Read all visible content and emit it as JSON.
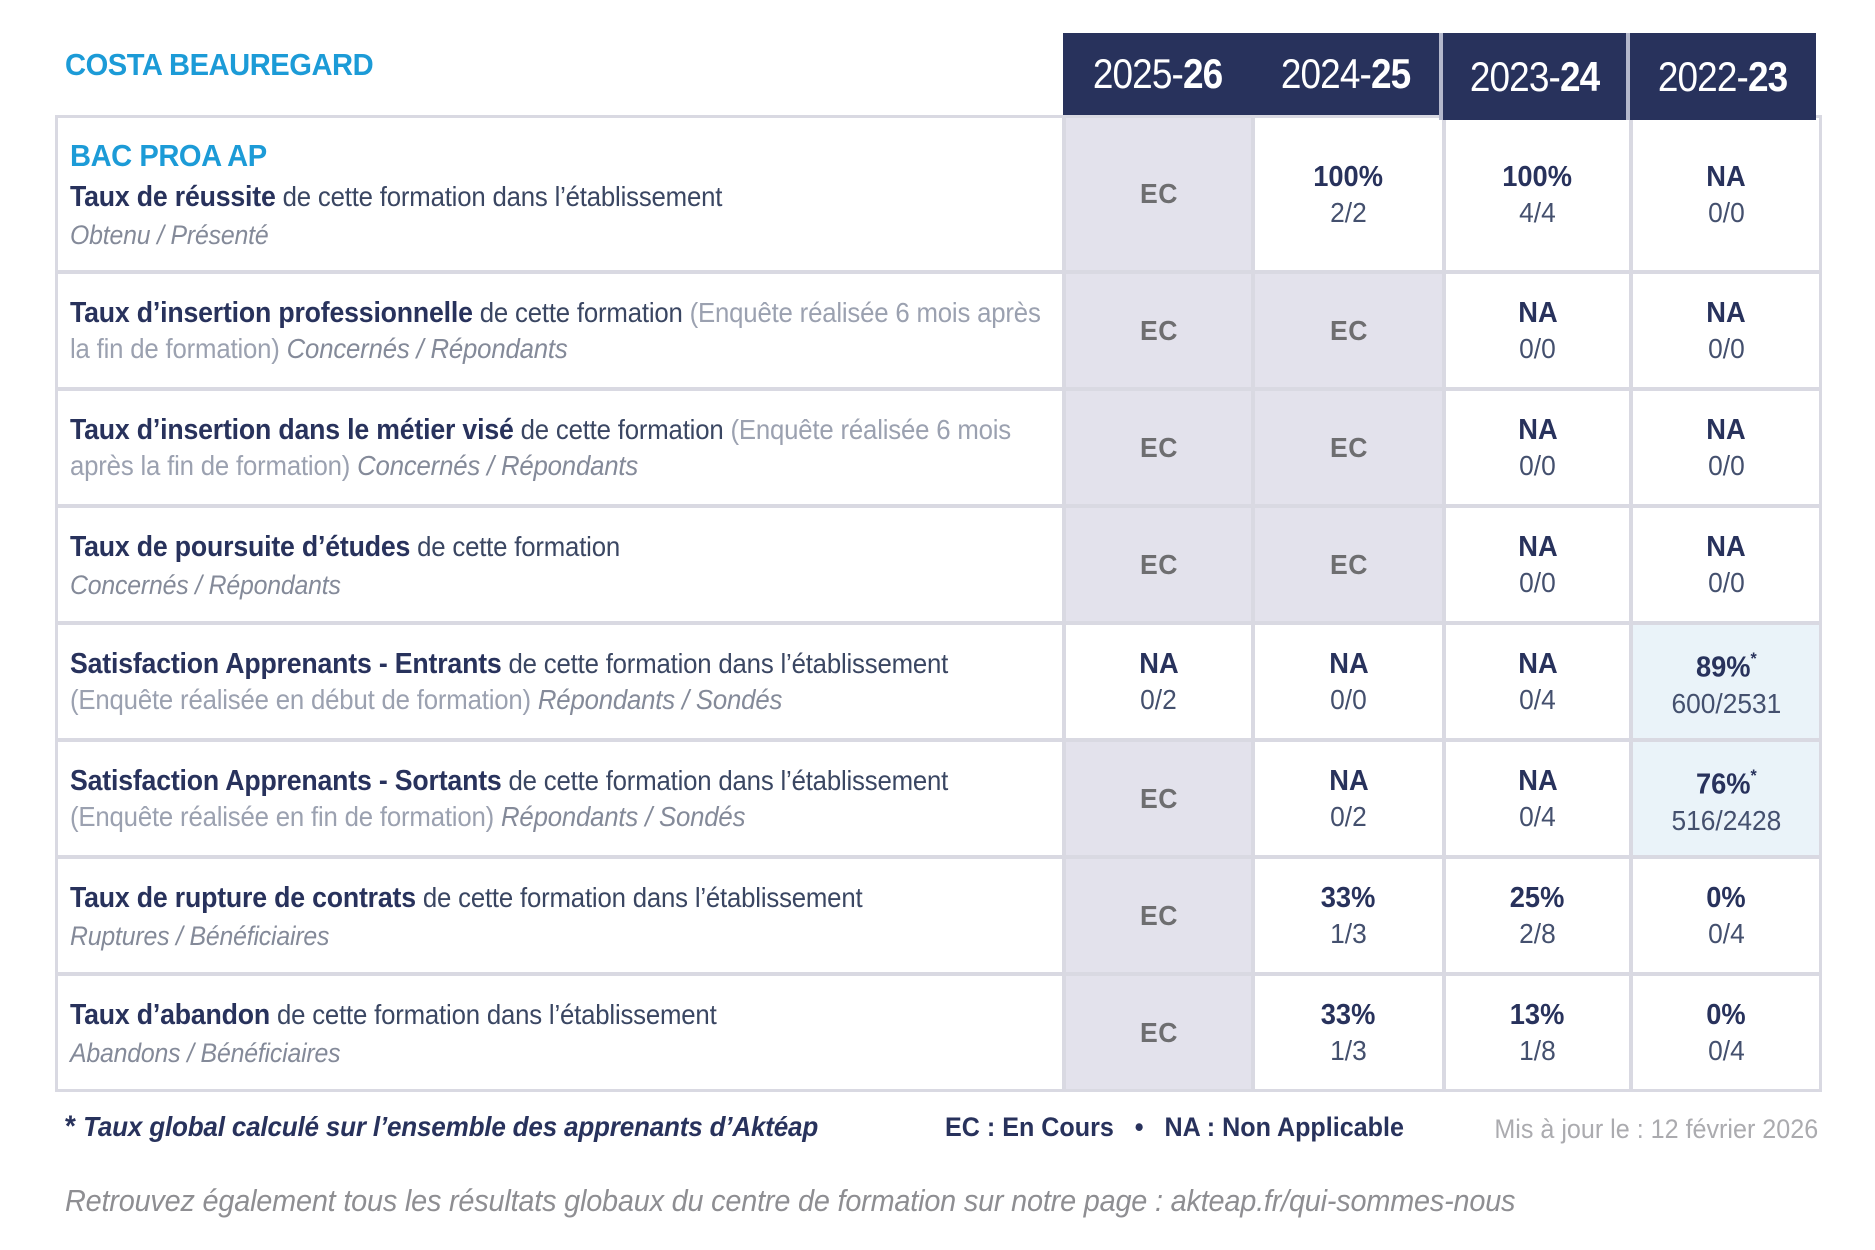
{
  "header": {
    "site_name": "COSTA BEAUREGARD",
    "years": [
      {
        "prefix": "2025-",
        "suffix": "26"
      },
      {
        "prefix": "2024-",
        "suffix": "25"
      },
      {
        "prefix": "2023-",
        "suffix": "24"
      },
      {
        "prefix": "2022-",
        "suffix": "23"
      }
    ]
  },
  "table": {
    "ec_label": "EC",
    "star": "*",
    "rows": [
      {
        "program": "BAC PROA AP",
        "label": [
          {
            "t": "Taux de réussite",
            "s": "b"
          },
          {
            "t": " de cette formation dans l’établissement",
            "s": "n"
          }
        ],
        "sub": "Obtenu / Présenté",
        "values": [
          {
            "ec": true
          },
          {
            "main": "100%",
            "frac": "2/2"
          },
          {
            "main": "100%",
            "frac": "4/4"
          },
          {
            "main": "NA",
            "frac": "0/0"
          }
        ]
      },
      {
        "label": [
          {
            "t": "Taux d’insertion professionnelle",
            "s": "b"
          },
          {
            "t": " de cette formation ",
            "s": "n"
          },
          {
            "t": "(Enquête réalisée 6 mois après la fin de formation) ",
            "s": "g"
          },
          {
            "t": "Concernés / Répondants",
            "s": "i"
          }
        ],
        "values": [
          {
            "ec": true
          },
          {
            "ec": true
          },
          {
            "main": "NA",
            "frac": "0/0"
          },
          {
            "main": "NA",
            "frac": "0/0"
          }
        ]
      },
      {
        "label": [
          {
            "t": "Taux d’insertion dans le métier visé",
            "s": "b"
          },
          {
            "t": " de cette formation ",
            "s": "n"
          },
          {
            "t": "(Enquête réalisée 6 mois après la fin de formation) ",
            "s": "g"
          },
          {
            "t": "Concernés / Répondants",
            "s": "i"
          }
        ],
        "values": [
          {
            "ec": true
          },
          {
            "ec": true
          },
          {
            "main": "NA",
            "frac": "0/0"
          },
          {
            "main": "NA",
            "frac": "0/0"
          }
        ]
      },
      {
        "label": [
          {
            "t": "Taux de poursuite d’études",
            "s": "b"
          },
          {
            "t": " de cette formation",
            "s": "n"
          }
        ],
        "sub": "Concernés / Répondants",
        "values": [
          {
            "ec": true
          },
          {
            "ec": true
          },
          {
            "main": "NA",
            "frac": "0/0"
          },
          {
            "main": "NA",
            "frac": "0/0"
          }
        ]
      },
      {
        "label": [
          {
            "t": "Satisfaction Apprenants - Entrants",
            "s": "b"
          },
          {
            "t": " de cette formation dans l’établissement ",
            "s": "n"
          },
          {
            "t": "(Enquête réalisée en début de formation) ",
            "s": "g"
          },
          {
            "t": "Répondants / Sondés",
            "s": "i"
          }
        ],
        "values": [
          {
            "main": "NA",
            "frac": "0/2"
          },
          {
            "main": "NA",
            "frac": "0/0"
          },
          {
            "main": "NA",
            "frac": "0/4"
          },
          {
            "main": "89%",
            "star": true,
            "frac": "600/2531",
            "hl": true
          }
        ]
      },
      {
        "label": [
          {
            "t": "Satisfaction Apprenants - Sortants",
            "s": "b"
          },
          {
            "t": " de cette formation dans l’établissement ",
            "s": "n"
          },
          {
            "t": "(Enquête réalisée en fin de formation) ",
            "s": "g"
          },
          {
            "t": "Répondants / Sondés",
            "s": "i"
          }
        ],
        "values": [
          {
            "ec": true
          },
          {
            "main": "NA",
            "frac": "0/2"
          },
          {
            "main": "NA",
            "frac": "0/4"
          },
          {
            "main": "76%",
            "star": true,
            "frac": "516/2428",
            "hl": true
          }
        ]
      },
      {
        "label": [
          {
            "t": "Taux de rupture de contrats",
            "s": "b"
          },
          {
            "t": " de cette formation dans l’établissement",
            "s": "n"
          }
        ],
        "sub": "Ruptures / Bénéficiaires",
        "values": [
          {
            "ec": true
          },
          {
            "main": "33%",
            "frac": "1/3"
          },
          {
            "main": "25%",
            "frac": "2/8"
          },
          {
            "main": "0%",
            "frac": "0/4"
          }
        ]
      },
      {
        "label": [
          {
            "t": "Taux d’abandon",
            "s": "b"
          },
          {
            "t": " de cette formation dans l’établissement",
            "s": "n"
          }
        ],
        "sub": "Abandons / Bénéficiaires",
        "values": [
          {
            "ec": true
          },
          {
            "main": "33%",
            "frac": "1/3"
          },
          {
            "main": "13%",
            "frac": "1/8"
          },
          {
            "main": "0%",
            "frac": "0/4"
          }
        ]
      }
    ]
  },
  "footer": {
    "star": "*",
    "footnote": "Taux global calculé sur l’ensemble des apprenants d’Aktéap",
    "legend": "EC : En Cours   •   NA : Non Applicable",
    "updated": "Mis à jour le : 12 février 2026",
    "bottom_note": "Retrouvez également tous les résultats globaux du centre de formation sur notre page : akteap.fr/qui-sommes-nous"
  },
  "colors": {
    "accent_blue": "#1C9BD7",
    "navy": "#28325C",
    "ec_cell_lavender": "#E3E2EC",
    "highlight_blue": "#EAF3F9",
    "grid_line": "#D9D9E2"
  }
}
